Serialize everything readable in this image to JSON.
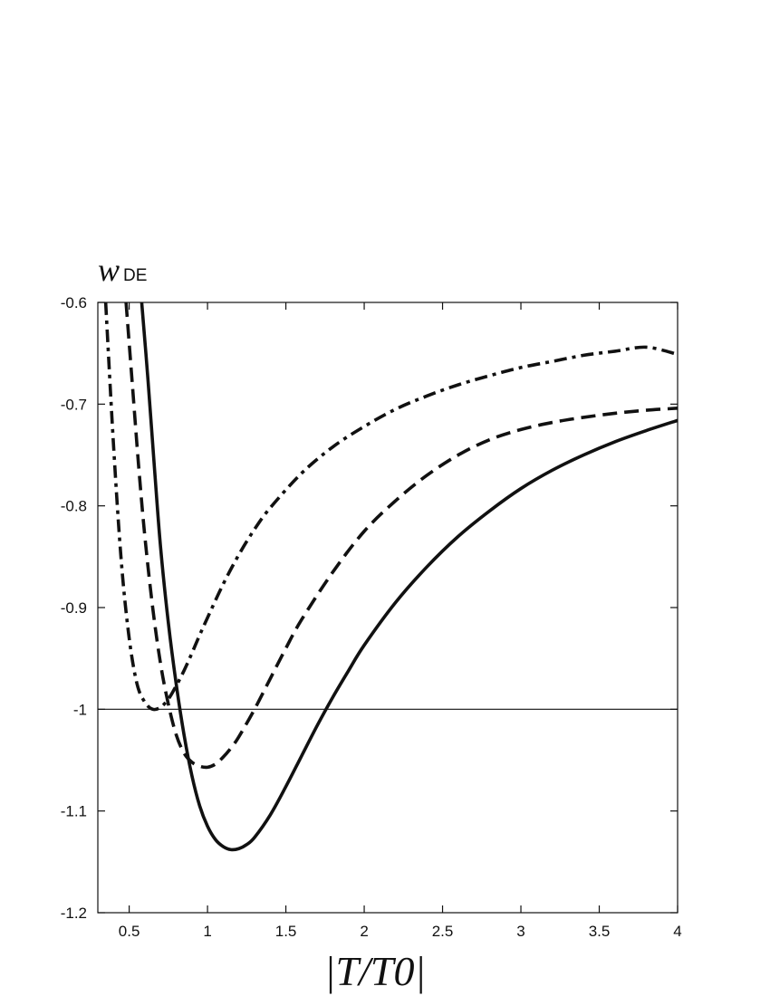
{
  "chart_data": {
    "type": "line",
    "ylabel_main": "w",
    "ylabel_sub": "DE",
    "xlabel": "|T/T0|",
    "xlim": [
      0.3,
      4.0
    ],
    "ylim": [
      -1.2,
      -0.6
    ],
    "xticks": [
      0.5,
      1,
      1.5,
      2,
      2.5,
      3,
      3.5,
      4
    ],
    "xtick_labels": [
      "0.5",
      "1",
      "1.5",
      "2",
      "2.5",
      "3",
      "3.5",
      "4"
    ],
    "yticks": [
      -0.6,
      -0.7,
      -0.8,
      -0.9,
      -1.0,
      -1.1,
      -1.2
    ],
    "ytick_labels": [
      "-0.6",
      "-0.7",
      "-0.8",
      "-0.9",
      "-1",
      "-1.1",
      "-1.2"
    ],
    "reference_line_y": -1.0,
    "grid": false,
    "series": [
      {
        "style": "solid",
        "x": [
          0.58,
          0.62,
          0.66,
          0.7,
          0.75,
          0.8,
          0.85,
          0.9,
          0.95,
          1.0,
          1.05,
          1.1,
          1.15,
          1.2,
          1.25,
          1.3,
          1.4,
          1.5,
          1.6,
          1.7,
          1.8,
          1.9,
          2.0,
          2.2,
          2.4,
          2.6,
          2.8,
          3.0,
          3.2,
          3.4,
          3.6,
          3.8,
          4.0
        ],
        "y": [
          -0.6,
          -0.676,
          -0.76,
          -0.84,
          -0.915,
          -0.975,
          -1.025,
          -1.065,
          -1.095,
          -1.115,
          -1.128,
          -1.135,
          -1.138,
          -1.137,
          -1.133,
          -1.126,
          -1.104,
          -1.076,
          -1.046,
          -1.016,
          -0.988,
          -0.962,
          -0.937,
          -0.895,
          -0.86,
          -0.83,
          -0.805,
          -0.783,
          -0.765,
          -0.75,
          -0.737,
          -0.726,
          -0.716
        ]
      },
      {
        "style": "dashed",
        "x": [
          0.48,
          0.52,
          0.56,
          0.6,
          0.65,
          0.7,
          0.75,
          0.8,
          0.85,
          0.9,
          0.95,
          1.0,
          1.05,
          1.1,
          1.15,
          1.2,
          1.3,
          1.4,
          1.5,
          1.6,
          1.8,
          2.0,
          2.2,
          2.4,
          2.6,
          2.8,
          3.0,
          3.2,
          3.4,
          3.6,
          3.8,
          4.0
        ],
        "y": [
          -0.6,
          -0.68,
          -0.76,
          -0.83,
          -0.9,
          -0.955,
          -0.995,
          -1.025,
          -1.043,
          -1.052,
          -1.056,
          -1.057,
          -1.054,
          -1.047,
          -1.038,
          -1.027,
          -1.0,
          -0.97,
          -0.94,
          -0.912,
          -0.865,
          -0.825,
          -0.795,
          -0.77,
          -0.75,
          -0.735,
          -0.725,
          -0.718,
          -0.713,
          -0.709,
          -0.706,
          -0.704
        ]
      },
      {
        "style": "dash-dot",
        "x": [
          0.35,
          0.4,
          0.45,
          0.5,
          0.55,
          0.6,
          0.65,
          0.7,
          0.75,
          0.8,
          0.85,
          0.9,
          0.95,
          1.0,
          1.1,
          1.2,
          1.3,
          1.4,
          1.6,
          1.8,
          2.0,
          2.2,
          2.4,
          2.6,
          2.8,
          3.0,
          3.2,
          3.4,
          3.6,
          3.8,
          4.0
        ],
        "y": [
          -0.6,
          -0.74,
          -0.855,
          -0.93,
          -0.975,
          -0.993,
          -1.0,
          -0.998,
          -0.99,
          -0.977,
          -0.962,
          -0.945,
          -0.927,
          -0.91,
          -0.877,
          -0.848,
          -0.823,
          -0.802,
          -0.768,
          -0.742,
          -0.722,
          -0.705,
          -0.692,
          -0.681,
          -0.672,
          -0.664,
          -0.658,
          -0.652,
          -0.648,
          -0.644,
          -0.651
        ]
      }
    ]
  }
}
